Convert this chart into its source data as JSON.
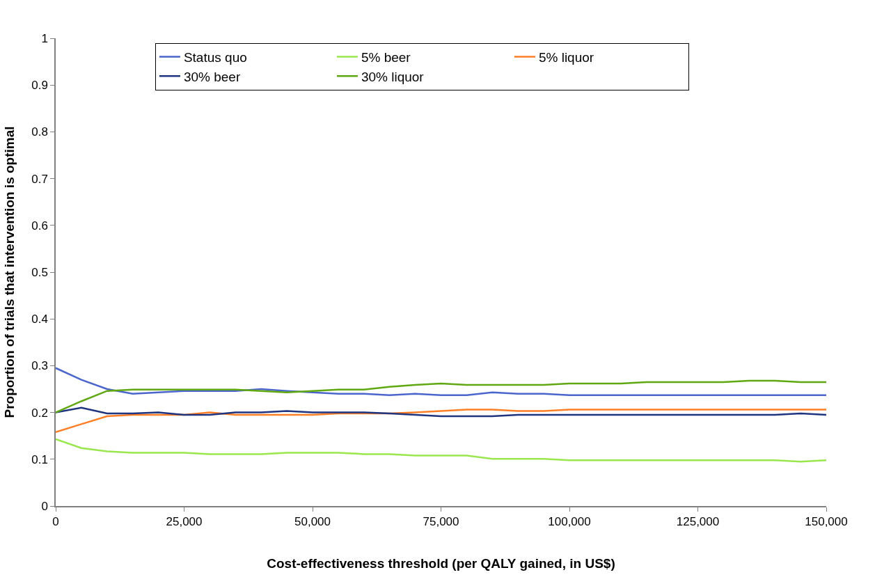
{
  "chart_data": {
    "type": "line",
    "xlabel": "Cost-effectiveness threshold (per QALY gained, in US$)",
    "ylabel": "Proportion of trials that intervention is optimal",
    "x": [
      0,
      5000,
      10000,
      15000,
      20000,
      25000,
      30000,
      35000,
      40000,
      45000,
      50000,
      55000,
      60000,
      65000,
      70000,
      75000,
      80000,
      85000,
      90000,
      95000,
      100000,
      105000,
      110000,
      115000,
      120000,
      125000,
      130000,
      135000,
      140000,
      145000,
      150000
    ],
    "series": [
      {
        "name": "Status quo",
        "color": "#4a66cc",
        "values": [
          0.295,
          0.27,
          0.25,
          0.24,
          0.243,
          0.246,
          0.246,
          0.246,
          0.25,
          0.246,
          0.243,
          0.24,
          0.24,
          0.237,
          0.24,
          0.237,
          0.237,
          0.243,
          0.24,
          0.24,
          0.237,
          0.237,
          0.237,
          0.237,
          0.237,
          0.237,
          0.237,
          0.237,
          0.237,
          0.237,
          0.237
        ]
      },
      {
        "name": "5% beer",
        "color": "#99e64d",
        "values": [
          0.143,
          0.124,
          0.117,
          0.114,
          0.114,
          0.114,
          0.111,
          0.111,
          0.111,
          0.114,
          0.114,
          0.114,
          0.111,
          0.111,
          0.108,
          0.108,
          0.108,
          0.101,
          0.101,
          0.101,
          0.098,
          0.098,
          0.098,
          0.098,
          0.098,
          0.098,
          0.098,
          0.098,
          0.098,
          0.095,
          0.098
        ]
      },
      {
        "name": "5% liquor",
        "color": "#ff7f27",
        "values": [
          0.158,
          0.175,
          0.192,
          0.195,
          0.195,
          0.195,
          0.2,
          0.195,
          0.195,
          0.195,
          0.195,
          0.198,
          0.198,
          0.198,
          0.2,
          0.203,
          0.206,
          0.206,
          0.203,
          0.203,
          0.206,
          0.206,
          0.206,
          0.206,
          0.206,
          0.206,
          0.206,
          0.206,
          0.206,
          0.206,
          0.206
        ]
      },
      {
        "name": "30% beer",
        "color": "#1f3580",
        "values": [
          0.2,
          0.21,
          0.198,
          0.198,
          0.2,
          0.195,
          0.195,
          0.2,
          0.2,
          0.203,
          0.2,
          0.2,
          0.2,
          0.198,
          0.195,
          0.192,
          0.192,
          0.192,
          0.195,
          0.195,
          0.195,
          0.195,
          0.195,
          0.195,
          0.195,
          0.195,
          0.195,
          0.195,
          0.195,
          0.198,
          0.195
        ]
      },
      {
        "name": "30% liquor",
        "color": "#5fa812",
        "values": [
          0.2,
          0.224,
          0.246,
          0.249,
          0.249,
          0.249,
          0.249,
          0.249,
          0.246,
          0.243,
          0.246,
          0.249,
          0.249,
          0.255,
          0.259,
          0.262,
          0.259,
          0.259,
          0.259,
          0.259,
          0.262,
          0.262,
          0.262,
          0.265,
          0.265,
          0.265,
          0.265,
          0.268,
          0.268,
          0.265,
          0.265
        ]
      }
    ],
    "xlim": [
      0,
      150000
    ],
    "xticks": [
      0,
      {
        "value": 25000,
        "label": "25,000"
      },
      {
        "value": 50000,
        "label": "50,000"
      },
      {
        "value": 75000,
        "label": "75,000"
      },
      {
        "value": 100000,
        "label": "100,000"
      },
      {
        "value": 125000,
        "label": "125,000"
      },
      {
        "value": 150000,
        "label": "150,000"
      }
    ],
    "ylim": [
      0,
      1
    ],
    "yticks": [
      0,
      0.1,
      0.2,
      0.3,
      0.4,
      0.5,
      0.6,
      0.7,
      0.8,
      0.9,
      1
    ],
    "legend": "top",
    "marker": "none",
    "line_style": "solid"
  }
}
